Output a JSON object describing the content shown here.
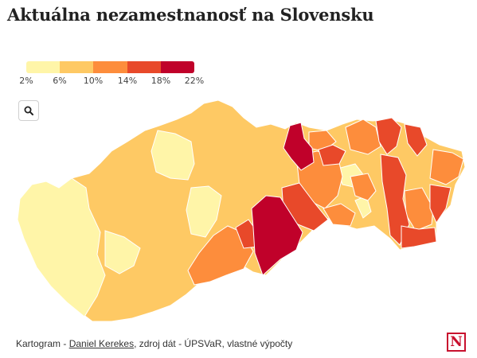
{
  "title": "Aktuálna nezamestnanosť na Slovensku",
  "legend": {
    "ticks": [
      "2%",
      "6%",
      "10%",
      "14%",
      "18%",
      "22%"
    ],
    "colors": [
      "#fff5a8",
      "#fec964",
      "#fd8d3c",
      "#e8492a",
      "#c0012a"
    ]
  },
  "search": {
    "icon": "search-icon"
  },
  "caption": {
    "prefix": "Kartogram - ",
    "author": "Daniel Kerekes",
    "suffix": ", zdroj dát - ÚPSVaR, vlastné výpočty"
  },
  "logo": {
    "letter": "N"
  }
}
